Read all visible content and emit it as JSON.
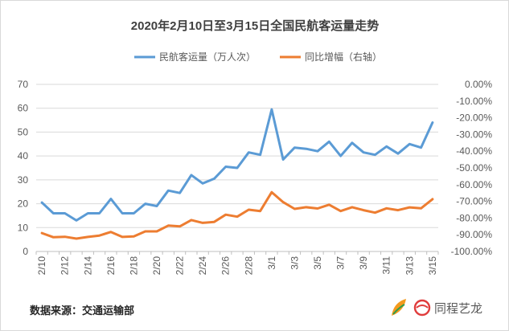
{
  "colors": {
    "passenger": "#5b9bd5",
    "growth": "#ed7d31",
    "grid": "#d9d9d9",
    "text": "#595959",
    "logo_red": "#e03c3c",
    "logo_green": "#2e9e4f",
    "logo_orange": "#f39a1e"
  },
  "source_text": "数据来源：交通运输部",
  "brand": {
    "name": "同程艺龙",
    "logo_icon": "tongcheng-leaf-and-elong-swirl-logo"
  },
  "chart_data": {
    "type": "line",
    "title": "2020年2月10日至3月15日全国民航客运量走势",
    "x_labels": [
      "2/10",
      "2/12",
      "2/14",
      "2/16",
      "2/18",
      "2/20",
      "2/22",
      "2/24",
      "2/26",
      "2/28",
      "3/1",
      "3/3",
      "3/5",
      "3/7",
      "3/9",
      "3/11",
      "3/13",
      "3/15"
    ],
    "x": [
      "2/10",
      "2/11",
      "2/12",
      "2/13",
      "2/14",
      "2/15",
      "2/16",
      "2/17",
      "2/18",
      "2/19",
      "2/20",
      "2/21",
      "2/22",
      "2/23",
      "2/24",
      "2/25",
      "2/26",
      "2/27",
      "2/28",
      "2/29",
      "3/1",
      "3/2",
      "3/3",
      "3/4",
      "3/5",
      "3/6",
      "3/7",
      "3/8",
      "3/9",
      "3/10",
      "3/11",
      "3/12",
      "3/13",
      "3/14",
      "3/15"
    ],
    "left_axis": {
      "ylim": [
        0,
        70
      ],
      "ticks": [
        "0",
        "10",
        "20",
        "30",
        "40",
        "50",
        "60",
        "70"
      ]
    },
    "right_axis": {
      "ylim": [
        -100,
        0
      ],
      "ticks": [
        "-100.00%",
        "-90.00%",
        "-80.00%",
        "-70.00%",
        "-60.00%",
        "-50.00%",
        "-40.00%",
        "-30.00%",
        "-20.00%",
        "-10.00%",
        "0.00%"
      ]
    },
    "series": [
      {
        "name": "民航客运量（万人次）",
        "axis": "left",
        "color_key": "passenger",
        "values": [
          20.5,
          16,
          16,
          13,
          16,
          16,
          22,
          16,
          16,
          20,
          19,
          25.5,
          24.5,
          32,
          28.5,
          30.5,
          35.5,
          35,
          41.5,
          40.5,
          59.5,
          38.5,
          43.5,
          43,
          42,
          46,
          40,
          45.5,
          41.5,
          40.5,
          44,
          41,
          45,
          43.5,
          54
        ]
      },
      {
        "name": "同比增幅（右轴）",
        "axis": "right",
        "color_key": "growth",
        "values": [
          -89,
          -91.5,
          -91.2,
          -92.3,
          -91.3,
          -90.5,
          -88.3,
          -91.3,
          -91,
          -88,
          -88,
          -84.5,
          -85,
          -81.2,
          -82.9,
          -82.3,
          -78,
          -79.2,
          -75,
          -75.8,
          -64.5,
          -70.5,
          -74.5,
          -73.5,
          -74.3,
          -72,
          -75.8,
          -73.5,
          -75.3,
          -76.8,
          -74.2,
          -75.3,
          -73.6,
          -74.2,
          -68.7
        ]
      }
    ]
  }
}
